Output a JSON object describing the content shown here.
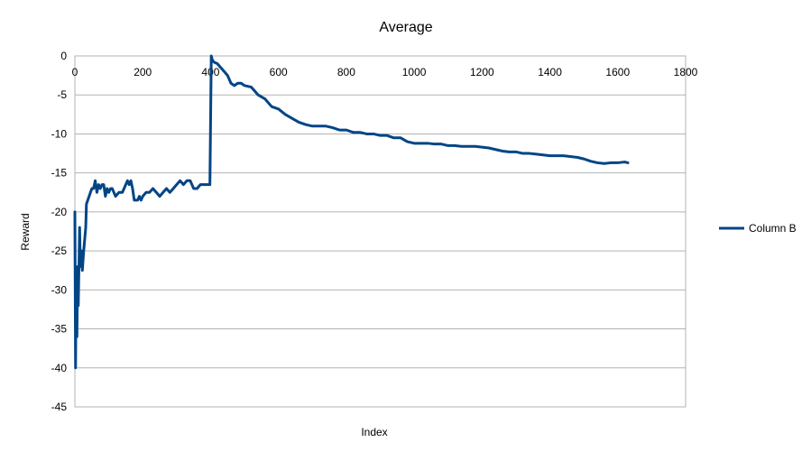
{
  "chart_data": {
    "type": "line",
    "title": "Average",
    "xlabel": "Index",
    "ylabel": "Reward",
    "xlim": [
      0,
      1800
    ],
    "ylim": [
      -45,
      0
    ],
    "x_ticks": [
      0,
      200,
      400,
      600,
      800,
      1000,
      1200,
      1400,
      1600,
      1800
    ],
    "y_ticks": [
      0,
      -5,
      -10,
      -15,
      -20,
      -25,
      -30,
      -35,
      -40,
      -45
    ],
    "grid": {
      "horizontal": true,
      "vertical": false
    },
    "legend_position": "right",
    "series": [
      {
        "name": "Column B",
        "color": "#004586",
        "points": [
          [
            0,
            -20
          ],
          [
            2,
            -40
          ],
          [
            4,
            -27
          ],
          [
            6,
            -36
          ],
          [
            8,
            -28
          ],
          [
            10,
            -32
          ],
          [
            12,
            -27
          ],
          [
            14,
            -22
          ],
          [
            16,
            -27
          ],
          [
            18,
            -26
          ],
          [
            20,
            -25
          ],
          [
            22,
            -27.5
          ],
          [
            26,
            -25
          ],
          [
            30,
            -23
          ],
          [
            32,
            -22
          ],
          [
            34,
            -19
          ],
          [
            38,
            -18.5
          ],
          [
            42,
            -18
          ],
          [
            46,
            -17.5
          ],
          [
            50,
            -17
          ],
          [
            55,
            -17
          ],
          [
            60,
            -16
          ],
          [
            65,
            -17.5
          ],
          [
            70,
            -16.5
          ],
          [
            75,
            -17
          ],
          [
            80,
            -16.5
          ],
          [
            85,
            -16.5
          ],
          [
            90,
            -18
          ],
          [
            95,
            -17
          ],
          [
            100,
            -17.5
          ],
          [
            105,
            -17
          ],
          [
            110,
            -17
          ],
          [
            115,
            -17.5
          ],
          [
            120,
            -18
          ],
          [
            130,
            -17.5
          ],
          [
            140,
            -17.5
          ],
          [
            150,
            -16.5
          ],
          [
            155,
            -16
          ],
          [
            160,
            -16.5
          ],
          [
            165,
            -16
          ],
          [
            170,
            -17
          ],
          [
            175,
            -18.5
          ],
          [
            185,
            -18.5
          ],
          [
            190,
            -18
          ],
          [
            195,
            -18.5
          ],
          [
            200,
            -18
          ],
          [
            210,
            -17.5
          ],
          [
            220,
            -17.5
          ],
          [
            230,
            -17
          ],
          [
            240,
            -17.5
          ],
          [
            250,
            -18
          ],
          [
            260,
            -17.5
          ],
          [
            270,
            -17
          ],
          [
            280,
            -17.5
          ],
          [
            290,
            -17
          ],
          [
            300,
            -16.5
          ],
          [
            310,
            -16
          ],
          [
            320,
            -16.5
          ],
          [
            330,
            -16
          ],
          [
            340,
            -16
          ],
          [
            350,
            -17
          ],
          [
            360,
            -17
          ],
          [
            370,
            -16.5
          ],
          [
            380,
            -16.5
          ],
          [
            390,
            -16.5
          ],
          [
            398,
            -16.5
          ],
          [
            402,
            0
          ],
          [
            405,
            -0.5
          ],
          [
            410,
            -0.8
          ],
          [
            420,
            -1
          ],
          [
            430,
            -1.5
          ],
          [
            440,
            -2
          ],
          [
            450,
            -2.5
          ],
          [
            460,
            -3.5
          ],
          [
            470,
            -3.8
          ],
          [
            480,
            -3.5
          ],
          [
            490,
            -3.5
          ],
          [
            500,
            -3.8
          ],
          [
            520,
            -4
          ],
          [
            530,
            -4.5
          ],
          [
            540,
            -5
          ],
          [
            560,
            -5.5
          ],
          [
            580,
            -6.5
          ],
          [
            600,
            -6.8
          ],
          [
            620,
            -7.5
          ],
          [
            640,
            -8
          ],
          [
            660,
            -8.5
          ],
          [
            680,
            -8.8
          ],
          [
            700,
            -9
          ],
          [
            720,
            -9
          ],
          [
            740,
            -9
          ],
          [
            760,
            -9.2
          ],
          [
            780,
            -9.5
          ],
          [
            800,
            -9.5
          ],
          [
            820,
            -9.8
          ],
          [
            840,
            -9.8
          ],
          [
            860,
            -10
          ],
          [
            880,
            -10
          ],
          [
            900,
            -10.2
          ],
          [
            920,
            -10.2
          ],
          [
            940,
            -10.5
          ],
          [
            960,
            -10.5
          ],
          [
            980,
            -11
          ],
          [
            1000,
            -11.2
          ],
          [
            1020,
            -11.2
          ],
          [
            1040,
            -11.2
          ],
          [
            1060,
            -11.3
          ],
          [
            1080,
            -11.3
          ],
          [
            1100,
            -11.5
          ],
          [
            1120,
            -11.5
          ],
          [
            1140,
            -11.6
          ],
          [
            1160,
            -11.6
          ],
          [
            1180,
            -11.6
          ],
          [
            1200,
            -11.7
          ],
          [
            1220,
            -11.8
          ],
          [
            1240,
            -12
          ],
          [
            1260,
            -12.2
          ],
          [
            1280,
            -12.3
          ],
          [
            1300,
            -12.3
          ],
          [
            1320,
            -12.5
          ],
          [
            1340,
            -12.5
          ],
          [
            1360,
            -12.6
          ],
          [
            1380,
            -12.7
          ],
          [
            1400,
            -12.8
          ],
          [
            1420,
            -12.8
          ],
          [
            1440,
            -12.8
          ],
          [
            1460,
            -12.9
          ],
          [
            1480,
            -13
          ],
          [
            1500,
            -13.2
          ],
          [
            1520,
            -13.5
          ],
          [
            1540,
            -13.7
          ],
          [
            1560,
            -13.8
          ],
          [
            1580,
            -13.7
          ],
          [
            1600,
            -13.7
          ],
          [
            1620,
            -13.6
          ],
          [
            1630,
            -13.7
          ]
        ]
      }
    ]
  }
}
